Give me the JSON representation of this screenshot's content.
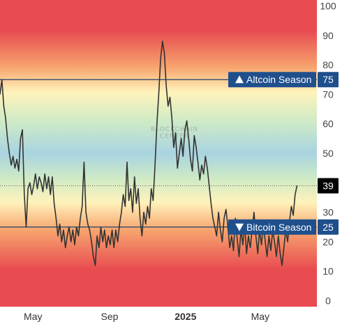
{
  "chart_data": {
    "type": "line",
    "title": "",
    "xlabel": "",
    "ylabel": "",
    "ylim": [
      -2,
      102
    ],
    "yticks": [
      0,
      10,
      20,
      30,
      40,
      50,
      60,
      70,
      80,
      90,
      100
    ],
    "xticks": [
      {
        "date": "2024-05-01",
        "label": "May"
      },
      {
        "date": "2024-09-01",
        "label": "Sep"
      },
      {
        "date": "2025-01-01",
        "label": "2025"
      },
      {
        "date": "2025-05-01",
        "label": "May"
      }
    ],
    "xlim": [
      "2024-03-09",
      "2025-07-31"
    ],
    "series": [
      {
        "values": [
          [
            "2024-03-09",
            70
          ],
          [
            "2024-03-12",
            75
          ],
          [
            "2024-03-15",
            66
          ],
          [
            "2024-03-18",
            62
          ],
          [
            "2024-03-21",
            55
          ],
          [
            "2024-03-24",
            50
          ],
          [
            "2024-03-27",
            46
          ],
          [
            "2024-03-30",
            49
          ],
          [
            "2024-04-02",
            45
          ],
          [
            "2024-04-05",
            48
          ],
          [
            "2024-04-08",
            44
          ],
          [
            "2024-04-11",
            55
          ],
          [
            "2024-04-14",
            58
          ],
          [
            "2024-04-17",
            36
          ],
          [
            "2024-04-20",
            25
          ],
          [
            "2024-04-23",
            38
          ],
          [
            "2024-04-26",
            40
          ],
          [
            "2024-04-29",
            36
          ],
          [
            "2024-05-02",
            39
          ],
          [
            "2024-05-05",
            43
          ],
          [
            "2024-05-08",
            38
          ],
          [
            "2024-05-11",
            42
          ],
          [
            "2024-05-14",
            40
          ],
          [
            "2024-05-17",
            37
          ],
          [
            "2024-05-20",
            43
          ],
          [
            "2024-05-23",
            38
          ],
          [
            "2024-05-26",
            42
          ],
          [
            "2024-05-29",
            36
          ],
          [
            "2024-06-01",
            42
          ],
          [
            "2024-06-04",
            33
          ],
          [
            "2024-06-07",
            28
          ],
          [
            "2024-06-10",
            22
          ],
          [
            "2024-06-13",
            26
          ],
          [
            "2024-06-16",
            20
          ],
          [
            "2024-06-19",
            24
          ],
          [
            "2024-06-22",
            18
          ],
          [
            "2024-06-25",
            22
          ],
          [
            "2024-06-28",
            25
          ],
          [
            "2024-07-01",
            20
          ],
          [
            "2024-07-04",
            24
          ],
          [
            "2024-07-07",
            19
          ],
          [
            "2024-07-10",
            25
          ],
          [
            "2024-07-13",
            22
          ],
          [
            "2024-07-16",
            28
          ],
          [
            "2024-07-19",
            32
          ],
          [
            "2024-07-22",
            47
          ],
          [
            "2024-07-25",
            30
          ],
          [
            "2024-07-28",
            26
          ],
          [
            "2024-07-31",
            24
          ],
          [
            "2024-08-03",
            20
          ],
          [
            "2024-08-06",
            15
          ],
          [
            "2024-08-09",
            12
          ],
          [
            "2024-08-12",
            22
          ],
          [
            "2024-08-15",
            18
          ],
          [
            "2024-08-18",
            25
          ],
          [
            "2024-08-21",
            20
          ],
          [
            "2024-08-24",
            24
          ],
          [
            "2024-08-27",
            18
          ],
          [
            "2024-08-30",
            22
          ],
          [
            "2024-09-02",
            19
          ],
          [
            "2024-09-05",
            24
          ],
          [
            "2024-09-08",
            18
          ],
          [
            "2024-09-11",
            24
          ],
          [
            "2024-09-14",
            20
          ],
          [
            "2024-09-17",
            26
          ],
          [
            "2024-09-20",
            30
          ],
          [
            "2024-09-23",
            36
          ],
          [
            "2024-09-26",
            32
          ],
          [
            "2024-09-29",
            47
          ],
          [
            "2024-10-02",
            34
          ],
          [
            "2024-10-05",
            38
          ],
          [
            "2024-10-08",
            30
          ],
          [
            "2024-10-11",
            42
          ],
          [
            "2024-10-14",
            33
          ],
          [
            "2024-10-17",
            38
          ],
          [
            "2024-10-20",
            28
          ],
          [
            "2024-10-23",
            22
          ],
          [
            "2024-10-26",
            30
          ],
          [
            "2024-10-29",
            26
          ],
          [
            "2024-11-01",
            32
          ],
          [
            "2024-11-04",
            28
          ],
          [
            "2024-11-07",
            38
          ],
          [
            "2024-11-10",
            34
          ],
          [
            "2024-11-13",
            46
          ],
          [
            "2024-11-16",
            60
          ],
          [
            "2024-11-19",
            70
          ],
          [
            "2024-11-22",
            82
          ],
          [
            "2024-11-25",
            88
          ],
          [
            "2024-11-28",
            84
          ],
          [
            "2024-12-01",
            73
          ],
          [
            "2024-12-04",
            66
          ],
          [
            "2024-12-07",
            69
          ],
          [
            "2024-12-10",
            62
          ],
          [
            "2024-12-13",
            52
          ],
          [
            "2024-12-16",
            57
          ],
          [
            "2024-12-19",
            45
          ],
          [
            "2024-12-22",
            50
          ],
          [
            "2024-12-25",
            55
          ],
          [
            "2024-12-28",
            49
          ],
          [
            "2024-12-31",
            58
          ],
          [
            "2025-01-03",
            61
          ],
          [
            "2025-01-06",
            55
          ],
          [
            "2025-01-09",
            48
          ],
          [
            "2025-01-12",
            44
          ],
          [
            "2025-01-15",
            56
          ],
          [
            "2025-01-18",
            52
          ],
          [
            "2025-01-21",
            47
          ],
          [
            "2025-01-24",
            41
          ],
          [
            "2025-01-27",
            46
          ],
          [
            "2025-01-30",
            43
          ],
          [
            "2025-02-02",
            49
          ],
          [
            "2025-02-05",
            45
          ],
          [
            "2025-02-08",
            39
          ],
          [
            "2025-02-11",
            33
          ],
          [
            "2025-02-14",
            28
          ],
          [
            "2025-02-17",
            25
          ],
          [
            "2025-02-20",
            22
          ],
          [
            "2025-02-23",
            30
          ],
          [
            "2025-02-26",
            24
          ],
          [
            "2025-03-01",
            20
          ],
          [
            "2025-03-04",
            28
          ],
          [
            "2025-03-07",
            31
          ],
          [
            "2025-03-10",
            25
          ],
          [
            "2025-03-13",
            18
          ],
          [
            "2025-03-16",
            22
          ],
          [
            "2025-03-19",
            17
          ],
          [
            "2025-03-22",
            28
          ],
          [
            "2025-03-25",
            21
          ],
          [
            "2025-03-28",
            15
          ],
          [
            "2025-03-31",
            24
          ],
          [
            "2025-04-03",
            19
          ],
          [
            "2025-04-06",
            26
          ],
          [
            "2025-04-09",
            16
          ],
          [
            "2025-04-12",
            22
          ],
          [
            "2025-04-15",
            18
          ],
          [
            "2025-04-18",
            24
          ],
          [
            "2025-04-21",
            30
          ],
          [
            "2025-04-24",
            22
          ],
          [
            "2025-04-27",
            16
          ],
          [
            "2025-04-30",
            24
          ],
          [
            "2025-05-03",
            19
          ],
          [
            "2025-05-06",
            26
          ],
          [
            "2025-05-09",
            20
          ],
          [
            "2025-05-12",
            15
          ],
          [
            "2025-05-15",
            22
          ],
          [
            "2025-05-18",
            17
          ],
          [
            "2025-05-21",
            24
          ],
          [
            "2025-05-24",
            20
          ],
          [
            "2025-05-27",
            15
          ],
          [
            "2025-05-30",
            22
          ],
          [
            "2025-06-02",
            16
          ],
          [
            "2025-06-05",
            12
          ],
          [
            "2025-06-08",
            18
          ],
          [
            "2025-06-11",
            24
          ],
          [
            "2025-06-14",
            20
          ],
          [
            "2025-06-17",
            27
          ],
          [
            "2025-06-20",
            32
          ],
          [
            "2025-06-23",
            29
          ],
          [
            "2025-06-26",
            36
          ],
          [
            "2025-06-29",
            39
          ]
        ]
      }
    ],
    "reference_lines": [
      {
        "value": 75,
        "label": "Altcoin Season",
        "marker": "up",
        "value_label": "75"
      },
      {
        "value": 25,
        "label": "Bitcoin Season",
        "marker": "down",
        "value_label": "25"
      }
    ],
    "current": {
      "value": 39,
      "label": "39"
    },
    "watermark": [
      "BLOCKCHAIN",
      "CENTER"
    ],
    "background": "vertical gradient: red at extremes, yellow/orange, green and blue in middle",
    "colors": {
      "line": "#333333",
      "reference_line": "#1f3f6e",
      "tag": "#1f4f8c",
      "current_tag": "#000000",
      "band_red": "#e84b50",
      "band_orange": "#f7a56e",
      "band_yellow": "#fff2bb",
      "band_green": "#cdeac6",
      "band_blue": "#a9d3e1"
    },
    "grid": false
  }
}
